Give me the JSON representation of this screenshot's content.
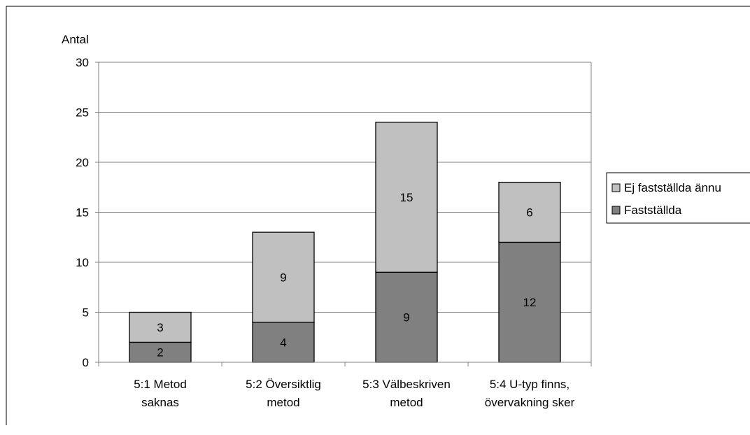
{
  "chart_data": {
    "type": "bar",
    "stacked": true,
    "ylabel": "Antal",
    "ylim": [
      0,
      30
    ],
    "yticks": [
      0,
      5,
      10,
      15,
      20,
      25,
      30
    ],
    "grid": true,
    "legend_position": "right",
    "categories": [
      [
        "5:1 Metod",
        "saknas"
      ],
      [
        "5:2 Översiktlig",
        "metod"
      ],
      [
        "5:3 Välbeskriven",
        "metod"
      ],
      [
        "5:4 U-typ finns,",
        "övervakning sker"
      ]
    ],
    "series": [
      {
        "name": "Fastställda",
        "values": [
          2,
          4,
          9,
          12
        ],
        "color": "#808080"
      },
      {
        "name": "Ej fastställda ännu",
        "values": [
          3,
          9,
          15,
          6
        ],
        "color": "#c0c0c0"
      }
    ],
    "legend_order": [
      "Ej fastställda ännu",
      "Fastställda"
    ]
  }
}
